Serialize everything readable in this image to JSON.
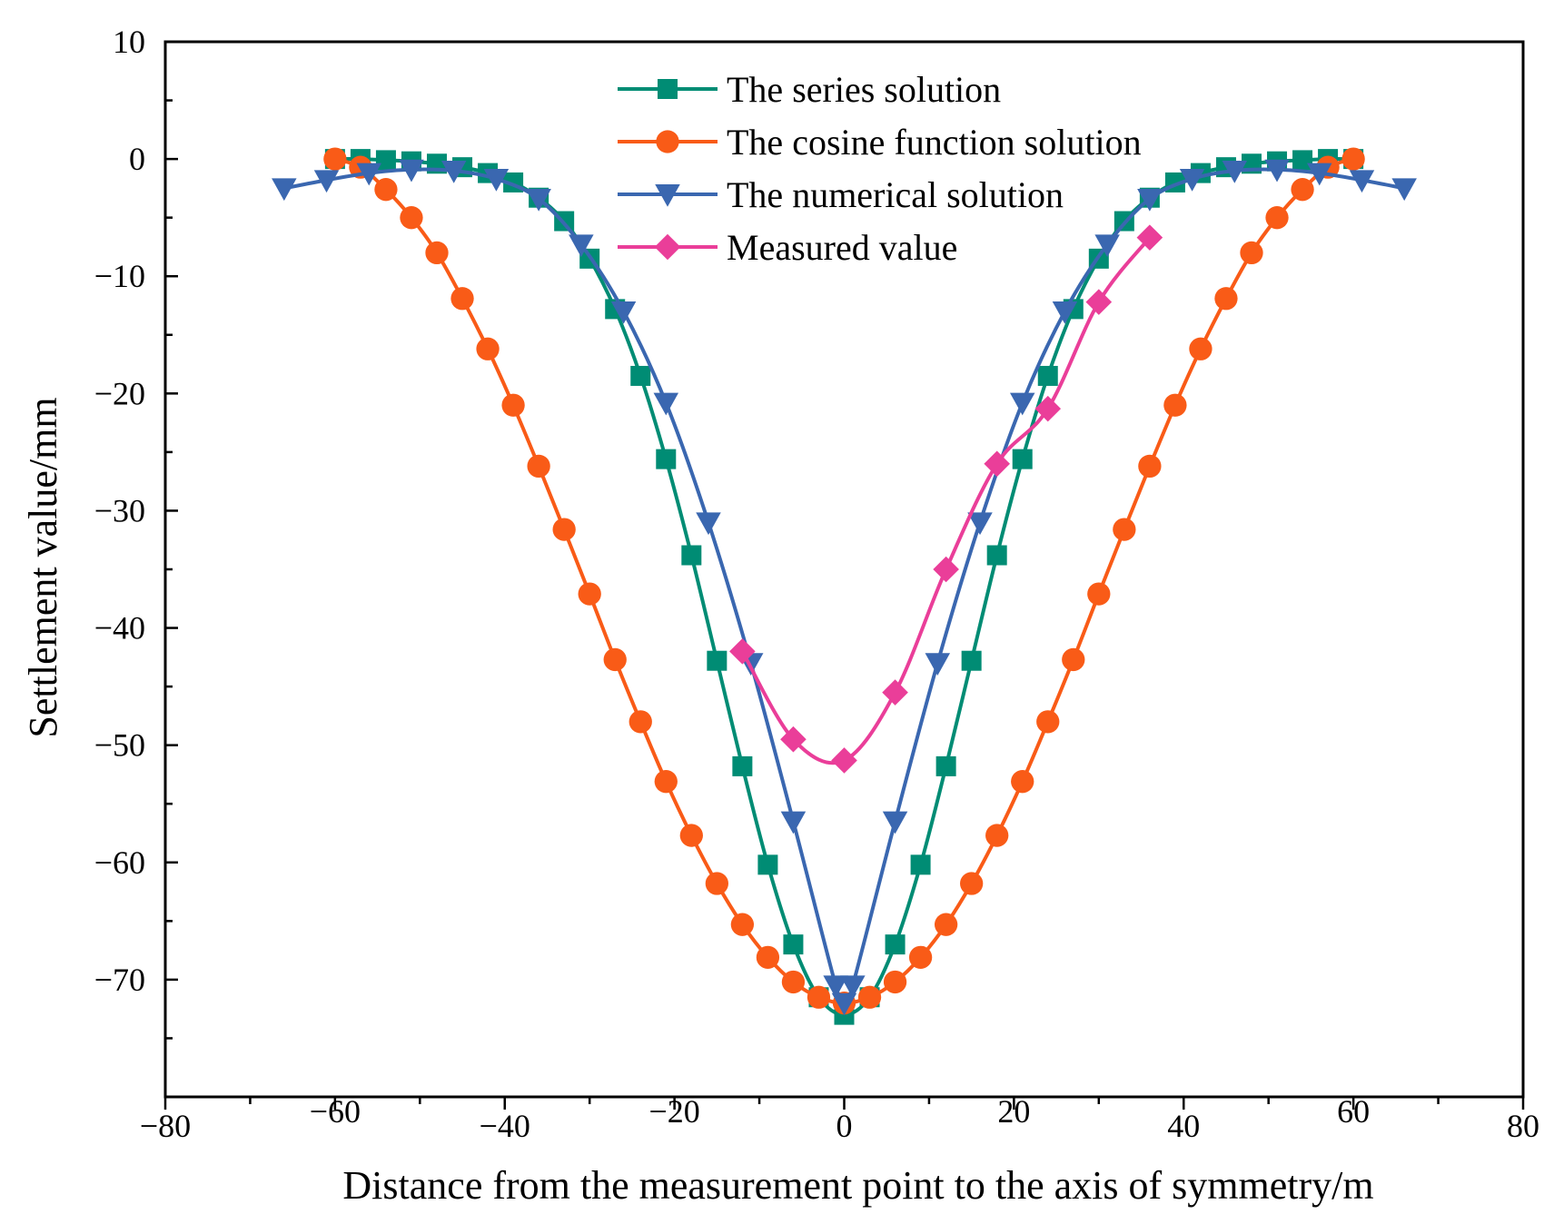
{
  "chart_data": {
    "type": "line",
    "xlabel": "Distance from the measurement point to the axis of symmetry/m",
    "ylabel": "Settlement value/mm",
    "xlim": [
      -80,
      80
    ],
    "ylim": [
      -80,
      10
    ],
    "xticks": [
      -80,
      -60,
      -40,
      -20,
      0,
      20,
      40,
      60,
      80
    ],
    "xtick_labels": [
      "−80",
      "−60",
      "−40",
      "−20",
      "0",
      "20",
      "40",
      "60",
      "80"
    ],
    "yticks": [
      10,
      0,
      -10,
      -20,
      -30,
      -40,
      -50,
      -60,
      -70
    ],
    "ytick_labels": [
      "10",
      "0",
      "−10",
      "−20",
      "−30",
      "−40",
      "−50",
      "−60",
      "−70"
    ],
    "grid": false,
    "legend_position": "top-center",
    "series": [
      {
        "name": "The series solution",
        "color": "#008c74",
        "marker": "square",
        "x": [
          -60,
          -57,
          -54,
          -51,
          -48,
          -45,
          -42,
          -39,
          -36,
          -33,
          -30,
          -27,
          -24,
          -21,
          -18,
          -15,
          -12,
          -9,
          -6,
          -3,
          0,
          3,
          6,
          9,
          12,
          15,
          18,
          21,
          24,
          27,
          30,
          33,
          36,
          39,
          42,
          45,
          48,
          51,
          54,
          57,
          60
        ],
        "y": [
          0,
          0,
          -0.1,
          -0.2,
          -0.4,
          -0.7,
          -1.2,
          -2.0,
          -3.3,
          -5.3,
          -8.5,
          -12.8,
          -18.5,
          -25.6,
          -33.8,
          -42.8,
          -51.8,
          -60.2,
          -67.0,
          -71.5,
          -73.0,
          -71.5,
          -67.0,
          -60.2,
          -51.8,
          -42.8,
          -33.8,
          -25.6,
          -18.5,
          -12.8,
          -8.5,
          -5.3,
          -3.3,
          -2.0,
          -1.2,
          -0.7,
          -0.4,
          -0.2,
          -0.1,
          0,
          0
        ]
      },
      {
        "name": "The cosine function solution",
        "color": "#f95b17",
        "marker": "circle",
        "x": [
          -60,
          -57,
          -54,
          -51,
          -48,
          -45,
          -42,
          -39,
          -36,
          -33,
          -30,
          -27,
          -24,
          -21,
          -18,
          -15,
          -12,
          -9,
          -6,
          -3,
          0,
          3,
          6,
          9,
          12,
          15,
          18,
          21,
          24,
          27,
          30,
          33,
          36,
          39,
          42,
          45,
          48,
          51,
          54,
          57,
          60
        ],
        "y": [
          0,
          -0.7,
          -2.6,
          -5.0,
          -8.0,
          -11.9,
          -16.2,
          -21.0,
          -26.2,
          -31.6,
          -37.1,
          -42.7,
          -48.0,
          -53.1,
          -57.7,
          -61.8,
          -65.3,
          -68.1,
          -70.2,
          -71.5,
          -72.0,
          -71.5,
          -70.2,
          -68.1,
          -65.3,
          -61.8,
          -57.7,
          -53.1,
          -48.0,
          -42.7,
          -37.1,
          -31.6,
          -26.2,
          -21.0,
          -16.2,
          -11.9,
          -8.0,
          -5.0,
          -2.6,
          -0.7,
          0
        ]
      },
      {
        "name": "The numerical solution",
        "color": "#3a67b0",
        "marker": "triangle-down",
        "x": [
          -66,
          -61,
          -56,
          -51,
          -46,
          -41,
          -36,
          -31,
          -26,
          -21,
          -16,
          -11,
          -6,
          -1,
          0,
          1,
          6,
          11,
          16,
          21,
          26,
          31,
          36,
          41,
          46,
          51,
          56,
          61,
          66
        ],
        "y": [
          -2.5,
          -1.8,
          -1.2,
          -0.9,
          -1.0,
          -1.7,
          -3.4,
          -7.3,
          -13.0,
          -20.8,
          -31.0,
          -43.0,
          -56.5,
          -70.5,
          -72.0,
          -70.5,
          -56.5,
          -43.0,
          -31.0,
          -20.8,
          -13.0,
          -7.3,
          -3.4,
          -1.7,
          -1.0,
          -0.9,
          -1.2,
          -1.8,
          -2.5
        ]
      },
      {
        "name": "Measured value",
        "color": "#ea3e99",
        "marker": "diamond",
        "x": [
          -12,
          -6,
          0,
          6,
          12,
          18,
          24,
          30,
          36
        ],
        "y": [
          -42.0,
          -49.5,
          -51.3,
          -45.5,
          -35.0,
          -26.0,
          -21.3,
          -12.2,
          -6.7
        ]
      }
    ]
  }
}
